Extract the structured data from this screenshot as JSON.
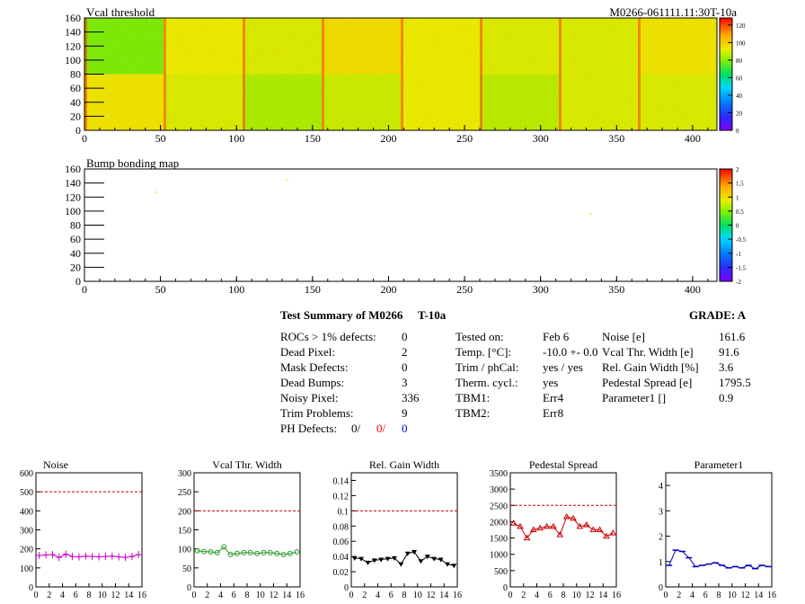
{
  "chart_data": [
    {
      "type": "heatmap",
      "title": "Vcal threshold",
      "module_label": "M0266-061111.11:30T-10a",
      "xlim": [
        0,
        416
      ],
      "ylim": [
        0,
        160
      ],
      "x_ticks": [
        0,
        50,
        100,
        150,
        200,
        250,
        300,
        350,
        400
      ],
      "y_ticks": [
        0,
        20,
        40,
        60,
        80,
        100,
        120,
        140,
        160
      ],
      "z_range": [
        0,
        128
      ],
      "z_ticks": [
        0,
        20,
        40,
        60,
        80,
        100,
        120
      ],
      "roc_grid": {
        "cols": 8,
        "rows": 2,
        "roc_width": 52,
        "roc_height": 80
      },
      "roc_mean_threshold": [
        [
          78,
          92,
          90,
          96,
          92,
          90,
          90,
          94
        ],
        [
          94,
          90,
          84,
          88,
          92,
          86,
          90,
          90
        ]
      ],
      "grid": false
    },
    {
      "type": "heatmap",
      "title": "Bump bonding map",
      "xlim": [
        0,
        416
      ],
      "ylim": [
        0,
        160
      ],
      "x_ticks": [
        0,
        50,
        100,
        150,
        200,
        250,
        300,
        350,
        400
      ],
      "y_ticks": [
        0,
        20,
        40,
        60,
        80,
        100,
        120,
        140,
        160
      ],
      "z_range": [
        -2,
        2
      ],
      "z_ticks": [
        -2,
        -1.5,
        -1,
        -0.5,
        0,
        0.5,
        1,
        1.5,
        2
      ],
      "points": [
        {
          "x": 47,
          "y": 128,
          "z": 1
        },
        {
          "x": 133,
          "y": 146,
          "z": 1
        },
        {
          "x": 333,
          "y": 97,
          "z": 1
        }
      ]
    },
    {
      "type": "line",
      "title": "Noise",
      "ylim": [
        0,
        600
      ],
      "y_ticks": [
        0,
        100,
        200,
        300,
        400,
        500,
        600
      ],
      "xlim": [
        0,
        16
      ],
      "x_ticks": [
        0,
        2,
        4,
        6,
        8,
        10,
        12,
        14,
        16
      ],
      "limit": 500,
      "color": "#cc00cc",
      "marker": "plus",
      "values": [
        165,
        168,
        170,
        155,
        172,
        160,
        158,
        162,
        160,
        158,
        160,
        162,
        158,
        155,
        160,
        170
      ]
    },
    {
      "type": "line",
      "title": "Vcal Thr. Width",
      "ylim": [
        0,
        300
      ],
      "y_ticks": [
        0,
        50,
        100,
        150,
        200,
        250,
        300
      ],
      "xlim": [
        0,
        16
      ],
      "x_ticks": [
        0,
        2,
        4,
        6,
        8,
        10,
        12,
        14,
        16
      ],
      "limit": 200,
      "color": "#2a9a2a",
      "marker": "circle",
      "values": [
        95,
        93,
        92,
        90,
        105,
        85,
        88,
        90,
        90,
        88,
        90,
        90,
        88,
        85,
        88,
        92
      ]
    },
    {
      "type": "line",
      "title": "Rel. Gain Width",
      "ylim": [
        0,
        0.15
      ],
      "y_ticks": [
        0,
        0.02,
        0.04,
        0.06,
        0.08,
        0.1,
        0.12,
        0.14
      ],
      "xlim": [
        0,
        16
      ],
      "x_ticks": [
        0,
        2,
        4,
        6,
        8,
        10,
        12,
        14,
        16
      ],
      "limit": 0.1,
      "color": "#000000",
      "marker": "triangle-down",
      "values": [
        0.038,
        0.037,
        0.032,
        0.035,
        0.036,
        0.037,
        0.038,
        0.03,
        0.044,
        0.046,
        0.034,
        0.04,
        0.037,
        0.036,
        0.03,
        0.028
      ]
    },
    {
      "type": "line",
      "title": "Pedestal Spread",
      "ylim": [
        0,
        3500
      ],
      "y_ticks": [
        0,
        500,
        1000,
        1500,
        2000,
        2500,
        3000,
        3500
      ],
      "xlim": [
        0,
        16
      ],
      "x_ticks": [
        0,
        2,
        4,
        6,
        8,
        10,
        12,
        14,
        16
      ],
      "limit": 2500,
      "color": "#cc0000",
      "marker": "triangle-up",
      "values": [
        1950,
        1850,
        1500,
        1750,
        1800,
        1850,
        1850,
        1600,
        2150,
        2100,
        1850,
        1900,
        1750,
        1750,
        1550,
        1650
      ]
    },
    {
      "type": "line",
      "title": "Parameter1",
      "ylim": [
        0,
        4.5
      ],
      "y_ticks": [
        0,
        1,
        2,
        3,
        4
      ],
      "xlim": [
        0,
        16
      ],
      "x_ticks": [
        0,
        2,
        4,
        6,
        8,
        10,
        12,
        14,
        16
      ],
      "limit": null,
      "color": "#0000bb",
      "marker": "hbar",
      "values": [
        0.85,
        1.45,
        1.4,
        1.15,
        0.8,
        0.85,
        0.9,
        0.95,
        0.85,
        0.75,
        0.8,
        0.75,
        0.85,
        0.72,
        0.85,
        0.8
      ]
    }
  ],
  "summary": {
    "title": "Test Summary of M0266",
    "temp_tag": "T-10a",
    "grade_label": "GRADE:  A",
    "rows_left": [
      {
        "label": "ROCs > 1% defects:",
        "value": "0"
      },
      {
        "label": "Dead Pixel:",
        "value": "2"
      },
      {
        "label": "Mask Defects:",
        "value": "0"
      },
      {
        "label": "Dead Bumps:",
        "value": "3"
      },
      {
        "label": "Noisy Pixel:",
        "value": "336"
      },
      {
        "label": "Trim Problems:",
        "value": "9"
      }
    ],
    "ph_defects": {
      "label": "PH Defects:",
      "v1": "0/",
      "v2": "0/",
      "v3": "0"
    },
    "rows_mid": [
      {
        "label": "Tested on:",
        "value": "Feb 6"
      },
      {
        "label": "Temp. [°C]:",
        "value": "-10.0 +- 0.0"
      },
      {
        "label": "Trim / phCal:",
        "value": "yes / yes"
      },
      {
        "label": "Therm. cycl.:",
        "value": "yes"
      },
      {
        "label": "TBM1:",
        "value": "Err4"
      },
      {
        "label": "TBM2:",
        "value": "Err8"
      }
    ],
    "rows_right": [
      {
        "label": "Noise [e]",
        "value": "161.6"
      },
      {
        "label": "Vcal Thr. Width [e]",
        "value": "91.6"
      },
      {
        "label": "Rel. Gain Width [%]",
        "value": "3.6"
      },
      {
        "label": "Pedestal Spread [e]",
        "value": "1795.5"
      },
      {
        "label": "Parameter1 []",
        "value": "0.9"
      }
    ]
  }
}
